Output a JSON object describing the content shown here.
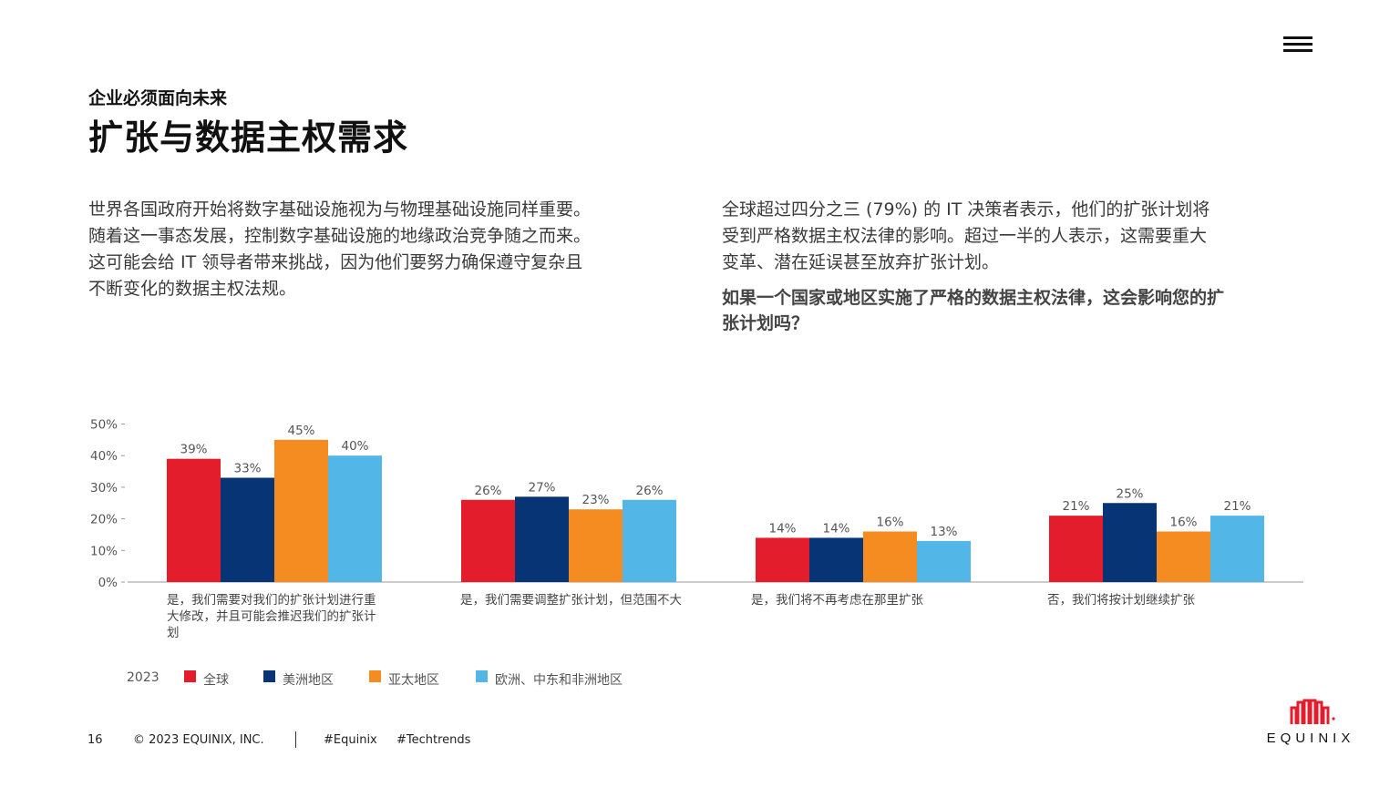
{
  "header": {
    "menu_icon": "hamburger-menu-icon",
    "eyebrow": "企业必须面向未来",
    "title": "扩张与数据主权需求"
  },
  "intro": {
    "paragraph": "世界各国政府开始将数字基础设施视为与物理基础设施同样重要。随着这一事态发展，控制数字基础设施的地缘政治竞争随之而来。这可能会给 IT 领导者带来挑战，因为他们要努力确保遵守复杂且不断变化的数据主权法规。"
  },
  "stat": {
    "paragraph": "全球超过四分之三 (79%) 的 IT 决策者表示，他们的扩张计划将受到严格数据主权法律的影响。超过一半的人表示，这需要重大变革、潜在延误甚至放弃扩张计划。",
    "question": "如果一个国家或地区实施了严格的数据主权法律，这会影响您的扩张计划吗？"
  },
  "chart_data": {
    "type": "bar",
    "categories": [
      "是，我们需要对我们的扩张计划进行重大修改，并且可能会推迟我们的扩张计划",
      "是，我们需要调整扩张计划，但范围不大",
      "是，我们将不再考虑在那里扩张",
      "否，我们将按计划继续扩张"
    ],
    "series": [
      {
        "name": "全球",
        "color": "#e31d2b",
        "values": [
          39,
          26,
          14,
          21
        ]
      },
      {
        "name": "美洲地区",
        "color": "#063474",
        "values": [
          33,
          27,
          14,
          25
        ]
      },
      {
        "name": "亚太地区",
        "color": "#f48c21",
        "values": [
          45,
          23,
          16,
          16
        ]
      },
      {
        "name": "欧洲、中东和非洲地区",
        "color": "#52b6e7",
        "values": [
          40,
          26,
          13,
          21
        ]
      }
    ],
    "y_ticks": [
      "50%",
      "40%",
      "30%",
      "20%",
      "10%",
      "0%"
    ],
    "ylim": [
      0,
      50
    ],
    "legend_year": "2023",
    "legend_position": "bottom-left",
    "grid": false
  },
  "footer": {
    "page_number": "16",
    "copyright": "© 2023 EQUINIX, INC.",
    "tag1": "#Equinix",
    "tag2": "#Techtrends"
  },
  "logo": {
    "wordmark": "EQUINIX",
    "brand_color": "#e31d2b"
  }
}
